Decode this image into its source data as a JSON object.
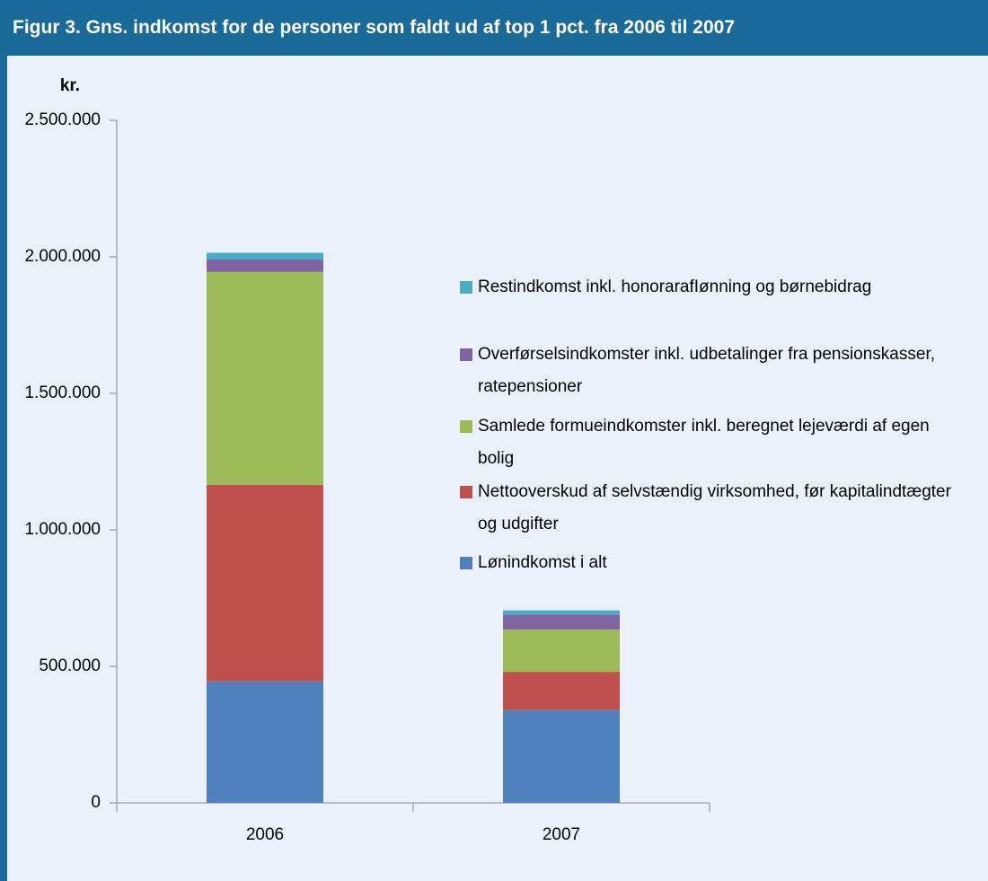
{
  "chart_data": {
    "type": "stacked_bar",
    "title": "Figur 3. Gns. indkomst for de personer som faldt ud af top 1 pct. fra 2006 til 2007",
    "y_label": "kr.",
    "categories": [
      "2006",
      "2007"
    ],
    "series": [
      {
        "name": "Lønindkomst i alt",
        "color": "#4f81bd",
        "values": [
          445000,
          340000
        ]
      },
      {
        "name": "Nettooverskud af selvstændig virksomhed, før kapitalindtægter og udgifter",
        "color": "#c0504d",
        "values": [
          720000,
          140000
        ]
      },
      {
        "name": "Samlede formueindkomster inkl. beregnet lejeværdi af egen bolig",
        "color": "#9bbb59",
        "values": [
          780000,
          155000
        ]
      },
      {
        "name": "Overførselsindkomster inkl. udbetalinger fra pensionskasser, ratepensioner",
        "color": "#8064a2",
        "values": [
          45000,
          55000
        ]
      },
      {
        "name": "Restindkomst inkl. honorarafIønning og børnebidrag",
        "color": "#4bacc6",
        "values": [
          25000,
          15000
        ]
      }
    ],
    "ylim": [
      0,
      2500000
    ],
    "yticks": [
      0,
      {
        "value": 500000,
        "label": "500.000"
      },
      {
        "value": 1000000,
        "label": "1.000.000"
      },
      {
        "value": 1500000,
        "label": "1.500.000"
      },
      {
        "value": 2000000,
        "label": "2.000.000"
      },
      {
        "value": 2500000,
        "label": "2.500.000"
      }
    ],
    "grid": false,
    "legend": "right"
  }
}
